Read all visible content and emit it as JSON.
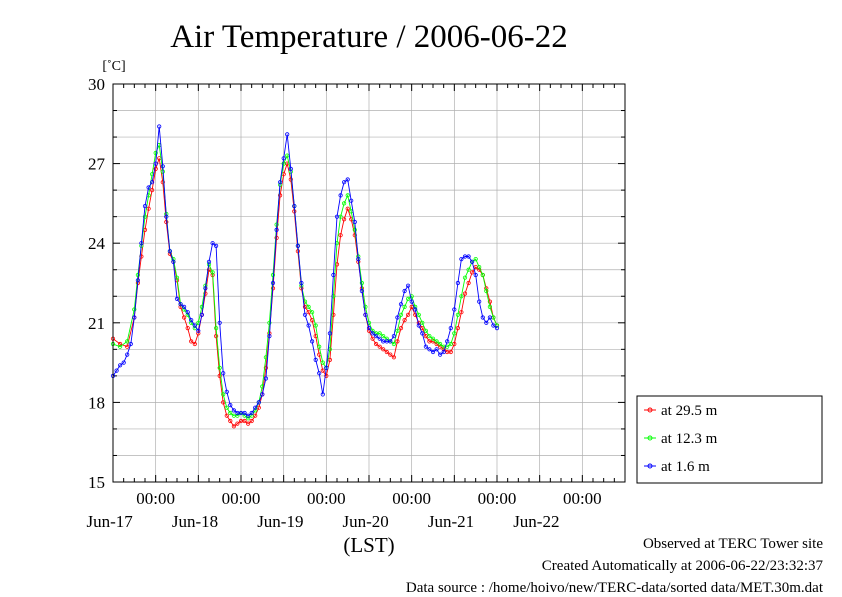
{
  "chart_data": {
    "type": "line",
    "title": "Air Temperature / 2006-06-22",
    "ylabel": "[˚C]",
    "xlabel": "(LST)",
    "ylim": [
      15,
      30
    ],
    "y_ticks": [
      15,
      18,
      21,
      24,
      27,
      30
    ],
    "x_range_hours": [
      0,
      144
    ],
    "x_start": "2006-06-16 12:00",
    "grid": true,
    "x_tick_labels": [
      {
        "time": "00:00",
        "date": "Jun-17"
      },
      {
        "time": "00:00",
        "date": "Jun-18"
      },
      {
        "time": "00:00",
        "date": "Jun-19"
      },
      {
        "time": "00:00",
        "date": "Jun-20"
      },
      {
        "time": "00:00",
        "date": "Jun-21"
      },
      {
        "time": "00:00",
        "date": "Jun-22"
      }
    ],
    "legend_position": "right-bottom",
    "series": [
      {
        "name": "at 29.5 m",
        "color": "#ff0000",
        "points": [
          [
            0,
            20.4
          ],
          [
            2,
            20.2
          ],
          [
            4,
            20.1
          ],
          [
            6,
            21.2
          ],
          [
            7,
            22.5
          ],
          [
            8,
            23.5
          ],
          [
            9,
            24.5
          ],
          [
            10,
            25.3
          ],
          [
            11,
            26.0
          ],
          [
            12,
            26.8
          ],
          [
            13,
            27.2
          ],
          [
            14,
            26.3
          ],
          [
            15,
            24.8
          ],
          [
            16,
            23.6
          ],
          [
            17,
            23.3
          ],
          [
            18,
            22.6
          ],
          [
            19,
            21.6
          ],
          [
            20,
            21.2
          ],
          [
            21,
            20.8
          ],
          [
            22,
            20.3
          ],
          [
            23,
            20.2
          ],
          [
            24,
            20.6
          ],
          [
            25,
            21.3
          ],
          [
            26,
            22.1
          ],
          [
            27,
            23.0
          ],
          [
            28,
            22.8
          ],
          [
            29,
            20.5
          ],
          [
            30,
            19.0
          ],
          [
            31,
            18.0
          ],
          [
            32,
            17.5
          ],
          [
            33,
            17.3
          ],
          [
            34,
            17.1
          ],
          [
            35,
            17.2
          ],
          [
            36,
            17.3
          ],
          [
            37,
            17.3
          ],
          [
            38,
            17.2
          ],
          [
            39,
            17.3
          ],
          [
            40,
            17.5
          ],
          [
            41,
            17.8
          ],
          [
            42,
            18.3
          ],
          [
            43,
            19.3
          ],
          [
            44,
            20.6
          ],
          [
            45,
            22.3
          ],
          [
            46,
            24.2
          ],
          [
            47,
            25.8
          ],
          [
            48,
            26.6
          ],
          [
            49,
            27.0
          ],
          [
            50,
            26.4
          ],
          [
            51,
            25.2
          ],
          [
            52,
            23.7
          ],
          [
            53,
            22.3
          ],
          [
            54,
            21.6
          ],
          [
            55,
            21.4
          ],
          [
            56,
            21.1
          ],
          [
            57,
            20.5
          ],
          [
            58,
            19.8
          ],
          [
            59,
            19.2
          ],
          [
            60,
            19.0
          ],
          [
            61,
            19.6
          ],
          [
            62,
            21.3
          ],
          [
            63,
            23.2
          ],
          [
            64,
            24.3
          ],
          [
            65,
            24.9
          ],
          [
            66,
            25.3
          ],
          [
            67,
            24.9
          ],
          [
            68,
            24.3
          ],
          [
            69,
            23.3
          ],
          [
            70,
            22.3
          ],
          [
            71,
            21.3
          ],
          [
            72,
            20.7
          ],
          [
            73,
            20.4
          ],
          [
            74,
            20.2
          ],
          [
            75,
            20.1
          ],
          [
            76,
            20.0
          ],
          [
            77,
            19.9
          ],
          [
            78,
            19.8
          ],
          [
            79,
            19.7
          ],
          [
            80,
            20.3
          ],
          [
            81,
            20.8
          ],
          [
            82,
            21.1
          ],
          [
            83,
            21.3
          ],
          [
            84,
            21.6
          ],
          [
            85,
            21.3
          ],
          [
            86,
            21.0
          ],
          [
            87,
            20.8
          ],
          [
            88,
            20.5
          ],
          [
            89,
            20.3
          ],
          [
            90,
            20.3
          ],
          [
            91,
            20.2
          ],
          [
            92,
            20.1
          ],
          [
            93,
            20.0
          ],
          [
            94,
            19.9
          ],
          [
            95,
            19.9
          ],
          [
            96,
            20.2
          ],
          [
            97,
            20.8
          ],
          [
            98,
            21.4
          ],
          [
            99,
            22.1
          ],
          [
            100,
            22.5
          ],
          [
            101,
            22.9
          ],
          [
            102,
            23.1
          ],
          [
            103,
            23.0
          ],
          [
            104,
            22.8
          ],
          [
            105,
            22.3
          ],
          [
            106,
            21.8
          ],
          [
            107,
            21.2
          ],
          [
            108,
            20.9
          ]
        ]
      },
      {
        "name": "at 12.3 m",
        "color": "#00ff00",
        "points": [
          [
            0,
            20.2
          ],
          [
            2,
            20.1
          ],
          [
            4,
            20.3
          ],
          [
            6,
            21.5
          ],
          [
            7,
            22.8
          ],
          [
            8,
            23.9
          ],
          [
            9,
            25.0
          ],
          [
            10,
            25.8
          ],
          [
            11,
            26.6
          ],
          [
            12,
            27.4
          ],
          [
            13,
            27.7
          ],
          [
            14,
            26.7
          ],
          [
            15,
            25.1
          ],
          [
            16,
            23.7
          ],
          [
            17,
            23.4
          ],
          [
            18,
            22.7
          ],
          [
            19,
            21.7
          ],
          [
            20,
            21.5
          ],
          [
            21,
            21.3
          ],
          [
            22,
            21.0
          ],
          [
            23,
            20.8
          ],
          [
            24,
            21.0
          ],
          [
            25,
            21.6
          ],
          [
            26,
            22.4
          ],
          [
            27,
            23.2
          ],
          [
            28,
            22.9
          ],
          [
            29,
            20.8
          ],
          [
            30,
            19.3
          ],
          [
            31,
            18.3
          ],
          [
            32,
            17.8
          ],
          [
            33,
            17.6
          ],
          [
            34,
            17.5
          ],
          [
            35,
            17.5
          ],
          [
            36,
            17.6
          ],
          [
            37,
            17.5
          ],
          [
            38,
            17.4
          ],
          [
            39,
            17.5
          ],
          [
            40,
            17.7
          ],
          [
            41,
            18.0
          ],
          [
            42,
            18.6
          ],
          [
            43,
            19.7
          ],
          [
            44,
            21.0
          ],
          [
            45,
            22.8
          ],
          [
            46,
            24.7
          ],
          [
            47,
            26.2
          ],
          [
            48,
            27.0
          ],
          [
            49,
            27.3
          ],
          [
            50,
            26.7
          ],
          [
            51,
            25.4
          ],
          [
            52,
            23.9
          ],
          [
            53,
            22.4
          ],
          [
            54,
            21.8
          ],
          [
            55,
            21.6
          ],
          [
            56,
            21.4
          ],
          [
            57,
            20.9
          ],
          [
            58,
            20.1
          ],
          [
            59,
            19.5
          ],
          [
            60,
            19.3
          ],
          [
            61,
            20.0
          ],
          [
            62,
            22.0
          ],
          [
            63,
            24.0
          ],
          [
            64,
            25.0
          ],
          [
            65,
            25.5
          ],
          [
            66,
            25.8
          ],
          [
            67,
            25.2
          ],
          [
            68,
            24.5
          ],
          [
            69,
            23.5
          ],
          [
            70,
            22.5
          ],
          [
            71,
            21.6
          ],
          [
            72,
            21.0
          ],
          [
            73,
            20.7
          ],
          [
            74,
            20.6
          ],
          [
            75,
            20.6
          ],
          [
            76,
            20.5
          ],
          [
            77,
            20.4
          ],
          [
            78,
            20.3
          ],
          [
            79,
            20.2
          ],
          [
            80,
            20.7
          ],
          [
            81,
            21.3
          ],
          [
            82,
            21.6
          ],
          [
            83,
            21.9
          ],
          [
            84,
            22.0
          ],
          [
            85,
            21.6
          ],
          [
            86,
            21.3
          ],
          [
            87,
            21.0
          ],
          [
            88,
            20.7
          ],
          [
            89,
            20.5
          ],
          [
            90,
            20.4
          ],
          [
            91,
            20.3
          ],
          [
            92,
            20.2
          ],
          [
            93,
            20.1
          ],
          [
            94,
            20.1
          ],
          [
            95,
            20.2
          ],
          [
            96,
            20.6
          ],
          [
            97,
            21.3
          ],
          [
            98,
            22.0
          ],
          [
            99,
            22.7
          ],
          [
            100,
            23.0
          ],
          [
            101,
            23.3
          ],
          [
            102,
            23.4
          ],
          [
            103,
            23.1
          ],
          [
            104,
            22.8
          ],
          [
            105,
            22.2
          ],
          [
            106,
            21.6
          ],
          [
            107,
            21.2
          ],
          [
            108,
            20.9
          ]
        ]
      },
      {
        "name": "at 1.6 m",
        "color": "#0000ff",
        "points": [
          [
            0,
            19.0
          ],
          [
            1,
            19.2
          ],
          [
            2,
            19.4
          ],
          [
            3,
            19.5
          ],
          [
            4,
            19.8
          ],
          [
            5,
            20.2
          ],
          [
            6,
            21.2
          ],
          [
            7,
            22.6
          ],
          [
            8,
            24.0
          ],
          [
            9,
            25.4
          ],
          [
            10,
            26.1
          ],
          [
            11,
            26.3
          ],
          [
            12,
            27.0
          ],
          [
            13,
            28.4
          ],
          [
            14,
            26.9
          ],
          [
            15,
            25.0
          ],
          [
            16,
            23.7
          ],
          [
            17,
            23.3
          ],
          [
            18,
            21.9
          ],
          [
            19,
            21.7
          ],
          [
            20,
            21.6
          ],
          [
            21,
            21.4
          ],
          [
            22,
            21.1
          ],
          [
            23,
            20.9
          ],
          [
            24,
            20.7
          ],
          [
            25,
            21.3
          ],
          [
            26,
            22.3
          ],
          [
            27,
            23.3
          ],
          [
            28,
            24.0
          ],
          [
            29,
            23.9
          ],
          [
            30,
            21.0
          ],
          [
            31,
            19.1
          ],
          [
            32,
            18.4
          ],
          [
            33,
            17.9
          ],
          [
            34,
            17.7
          ],
          [
            35,
            17.6
          ],
          [
            36,
            17.6
          ],
          [
            37,
            17.6
          ],
          [
            38,
            17.5
          ],
          [
            39,
            17.6
          ],
          [
            40,
            17.8
          ],
          [
            41,
            18.0
          ],
          [
            42,
            18.3
          ],
          [
            43,
            18.9
          ],
          [
            44,
            20.5
          ],
          [
            45,
            22.5
          ],
          [
            46,
            24.5
          ],
          [
            47,
            26.3
          ],
          [
            48,
            27.2
          ],
          [
            49,
            28.1
          ],
          [
            50,
            26.8
          ],
          [
            51,
            25.4
          ],
          [
            52,
            23.9
          ],
          [
            53,
            22.5
          ],
          [
            54,
            21.3
          ],
          [
            55,
            20.9
          ],
          [
            56,
            20.3
          ],
          [
            57,
            19.6
          ],
          [
            58,
            19.1
          ],
          [
            59,
            18.3
          ],
          [
            60,
            19.3
          ],
          [
            61,
            20.6
          ],
          [
            62,
            22.8
          ],
          [
            63,
            25.0
          ],
          [
            64,
            25.8
          ],
          [
            65,
            26.3
          ],
          [
            66,
            26.4
          ],
          [
            67,
            25.6
          ],
          [
            68,
            24.8
          ],
          [
            69,
            23.4
          ],
          [
            70,
            22.2
          ],
          [
            71,
            21.3
          ],
          [
            72,
            20.8
          ],
          [
            73,
            20.6
          ],
          [
            74,
            20.5
          ],
          [
            75,
            20.4
          ],
          [
            76,
            20.3
          ],
          [
            77,
            20.3
          ],
          [
            78,
            20.3
          ],
          [
            79,
            20.5
          ],
          [
            80,
            21.2
          ],
          [
            81,
            21.7
          ],
          [
            82,
            22.2
          ],
          [
            83,
            22.4
          ],
          [
            84,
            21.8
          ],
          [
            85,
            21.5
          ],
          [
            86,
            20.9
          ],
          [
            87,
            20.6
          ],
          [
            88,
            20.1
          ],
          [
            89,
            20.0
          ],
          [
            90,
            19.9
          ],
          [
            91,
            20.0
          ],
          [
            92,
            19.8
          ],
          [
            93,
            19.9
          ],
          [
            94,
            20.3
          ],
          [
            95,
            20.8
          ],
          [
            96,
            21.5
          ],
          [
            97,
            22.5
          ],
          [
            98,
            23.4
          ],
          [
            99,
            23.5
          ],
          [
            100,
            23.5
          ],
          [
            101,
            23.3
          ],
          [
            102,
            22.8
          ],
          [
            103,
            21.8
          ],
          [
            104,
            21.2
          ],
          [
            105,
            21.0
          ],
          [
            106,
            21.2
          ],
          [
            107,
            20.9
          ],
          [
            108,
            20.8
          ]
        ]
      }
    ]
  },
  "footer": {
    "line1": "Observed at TERC Tower site",
    "line2": "Created Automatically at 2006-06-22/23:32:37",
    "line3": "Data source : /home/hoivo/new/TERC-data/sorted  data/MET.30m.dat"
  }
}
